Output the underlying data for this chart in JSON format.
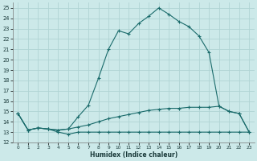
{
  "xlabel": "Humidex (Indice chaleur)",
  "bg_color": "#cce9e9",
  "grid_color": "#b0d4d4",
  "line_color": "#1a6b6b",
  "xlim": [
    -0.5,
    23.5
  ],
  "ylim": [
    12.0,
    25.5
  ],
  "xticks": [
    0,
    1,
    2,
    3,
    4,
    5,
    6,
    7,
    8,
    9,
    10,
    11,
    12,
    13,
    14,
    15,
    16,
    17,
    18,
    19,
    20,
    21,
    22,
    23
  ],
  "yticks": [
    12,
    13,
    14,
    15,
    16,
    17,
    18,
    19,
    20,
    21,
    22,
    23,
    24,
    25
  ],
  "curve1_x": [
    0,
    1,
    2,
    3,
    4,
    5,
    6,
    7,
    8,
    9,
    10,
    11,
    12,
    13,
    14,
    15,
    16,
    17,
    18,
    19,
    20,
    21,
    22,
    23
  ],
  "curve1_y": [
    14.8,
    13.2,
    13.4,
    13.3,
    13.2,
    13.3,
    14.5,
    15.6,
    18.2,
    21.0,
    22.8,
    22.5,
    23.5,
    24.2,
    25.0,
    24.4,
    23.7,
    23.2,
    22.3,
    20.7,
    15.5,
    15.0,
    14.8,
    13.0
  ],
  "curve2_x": [
    0,
    1,
    2,
    3,
    4,
    5,
    6,
    7,
    8,
    9,
    10,
    11,
    12,
    13,
    14,
    15,
    16,
    17,
    18,
    19,
    20,
    21,
    22,
    23
  ],
  "curve2_y": [
    14.8,
    13.2,
    13.4,
    13.3,
    13.2,
    13.3,
    13.5,
    13.7,
    14.0,
    14.3,
    14.5,
    14.7,
    14.9,
    15.1,
    15.2,
    15.3,
    15.3,
    15.4,
    15.4,
    15.4,
    15.5,
    15.0,
    14.8,
    13.0
  ],
  "curve3_x": [
    0,
    1,
    2,
    3,
    4,
    5,
    6,
    7,
    8,
    9,
    10,
    11,
    12,
    13,
    14,
    15,
    16,
    17,
    18,
    19,
    20,
    21,
    22,
    23
  ],
  "curve3_y": [
    14.8,
    13.2,
    13.4,
    13.3,
    13.0,
    12.8,
    13.0,
    13.0,
    13.0,
    13.0,
    13.0,
    13.0,
    13.0,
    13.0,
    13.0,
    13.0,
    13.0,
    13.0,
    13.0,
    13.0,
    13.0,
    13.0,
    13.0,
    13.0
  ]
}
